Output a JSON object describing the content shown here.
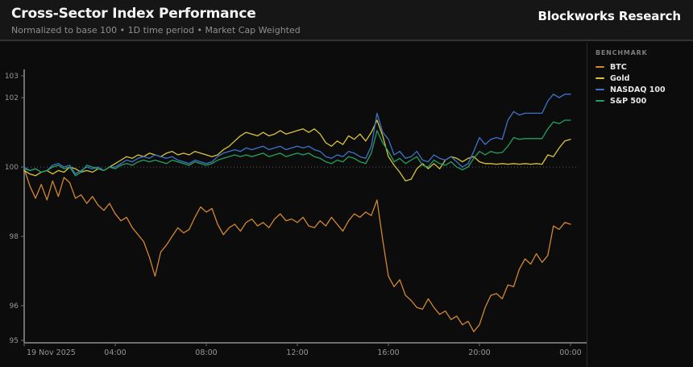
{
  "header": {
    "title": "Cross-Sector Index Performance",
    "subtitle": "Normalized to base 100 • 1D time period • Market Cap Weighted",
    "brand": "Blockworks Research"
  },
  "legend": {
    "heading": "BENCHMARK"
  },
  "colors": {
    "background": "#0c0c0d",
    "header_background": "#161617",
    "axis_line": "#6e6e73",
    "baseline_dotted": "#5c5c5c",
    "tick_text": "#969696"
  },
  "chart_data": {
    "type": "line",
    "title": "Cross-Sector Index Performance",
    "xlabel": "",
    "ylabel": "",
    "x_unit": "hours",
    "x_step_hours": 0.25,
    "xlim": [
      0,
      24
    ],
    "ylim": [
      94.93,
      102.77
    ],
    "baseline": 100,
    "grid": "dotted-baseline-only",
    "legend_position": "right",
    "y_ticks": [
      103,
      102,
      100,
      98,
      96,
      95
    ],
    "x_ticks": [
      {
        "t": 0,
        "label": "19 Nov 2025",
        "align": "start"
      },
      {
        "t": 4,
        "label": "04:00"
      },
      {
        "t": 8,
        "label": "08:00"
      },
      {
        "t": 12,
        "label": "12:00"
      },
      {
        "t": 16,
        "label": "16:00"
      },
      {
        "t": 20,
        "label": "20:00"
      },
      {
        "t": 24,
        "label": "00:00"
      }
    ],
    "series": [
      {
        "name": "BTC",
        "color": "#d2872f",
        "values": [
          99.95,
          99.45,
          99.1,
          99.5,
          99.05,
          99.6,
          99.15,
          99.7,
          99.55,
          99.1,
          99.2,
          98.95,
          99.15,
          98.9,
          98.75,
          98.95,
          98.65,
          98.45,
          98.55,
          98.25,
          98.05,
          97.85,
          97.4,
          96.85,
          97.55,
          97.75,
          98.0,
          98.25,
          98.1,
          98.2,
          98.55,
          98.85,
          98.7,
          98.8,
          98.35,
          98.05,
          98.25,
          98.35,
          98.15,
          98.4,
          98.5,
          98.3,
          98.4,
          98.25,
          98.5,
          98.65,
          98.45,
          98.5,
          98.4,
          98.55,
          98.3,
          98.25,
          98.45,
          98.3,
          98.55,
          98.35,
          98.15,
          98.45,
          98.65,
          98.55,
          98.7,
          98.6,
          99.05,
          97.9,
          96.85,
          96.55,
          96.75,
          96.3,
          96.15,
          95.95,
          95.9,
          96.2,
          95.95,
          95.75,
          95.85,
          95.6,
          95.7,
          95.45,
          95.55,
          95.25,
          95.45,
          95.95,
          96.3,
          96.35,
          96.2,
          96.6,
          96.55,
          97.05,
          97.35,
          97.2,
          97.5,
          97.25,
          97.45,
          98.3,
          98.2,
          98.4,
          98.35
        ]
      },
      {
        "name": "Gold",
        "color": "#d9c53a",
        "values": [
          99.9,
          99.8,
          99.75,
          99.85,
          99.9,
          99.8,
          99.9,
          99.85,
          100.0,
          99.95,
          99.85,
          99.9,
          99.85,
          99.95,
          99.9,
          100.0,
          100.1,
          100.2,
          100.3,
          100.25,
          100.35,
          100.3,
          100.4,
          100.35,
          100.3,
          100.4,
          100.45,
          100.35,
          100.4,
          100.35,
          100.45,
          100.4,
          100.35,
          100.3,
          100.35,
          100.5,
          100.6,
          100.75,
          100.9,
          101.0,
          100.95,
          100.9,
          101.0,
          100.9,
          100.95,
          101.05,
          100.95,
          101.0,
          101.05,
          101.1,
          101.0,
          101.1,
          100.95,
          100.7,
          100.6,
          100.75,
          100.65,
          100.9,
          100.8,
          100.95,
          100.75,
          101.0,
          101.35,
          100.9,
          100.3,
          100.05,
          99.85,
          99.6,
          99.65,
          99.95,
          100.1,
          99.95,
          100.1,
          99.95,
          100.2,
          100.3,
          100.25,
          100.15,
          100.25,
          100.3,
          100.15,
          100.1,
          100.1,
          100.08,
          100.1,
          100.08,
          100.1,
          100.08,
          100.1,
          100.08,
          100.1,
          100.08,
          100.35,
          100.3,
          100.55,
          100.75,
          100.8
        ]
      },
      {
        "name": "NASDAQ 100",
        "color": "#3d74c8",
        "values": [
          100.0,
          99.9,
          99.95,
          99.85,
          99.9,
          100.05,
          100.1,
          100.0,
          100.05,
          99.8,
          99.9,
          100.0,
          99.95,
          100.0,
          99.9,
          100.0,
          100.0,
          100.1,
          100.2,
          100.15,
          100.25,
          100.3,
          100.25,
          100.35,
          100.3,
          100.25,
          100.3,
          100.2,
          100.15,
          100.1,
          100.2,
          100.15,
          100.1,
          100.15,
          100.3,
          100.4,
          100.45,
          100.5,
          100.45,
          100.55,
          100.5,
          100.55,
          100.6,
          100.5,
          100.55,
          100.6,
          100.5,
          100.55,
          100.6,
          100.55,
          100.6,
          100.5,
          100.45,
          100.3,
          100.25,
          100.35,
          100.3,
          100.45,
          100.4,
          100.3,
          100.25,
          100.6,
          101.55,
          101.0,
          100.8,
          100.35,
          100.45,
          100.25,
          100.3,
          100.45,
          100.2,
          100.15,
          100.35,
          100.25,
          100.2,
          100.3,
          100.15,
          100.0,
          100.1,
          100.45,
          100.85,
          100.65,
          100.8,
          100.85,
          100.8,
          101.35,
          101.6,
          101.5,
          101.55,
          101.55,
          101.55,
          101.55,
          101.9,
          102.1,
          102.0,
          102.1,
          102.1
        ]
      },
      {
        "name": "S&P 500",
        "color": "#26a05e",
        "values": [
          99.95,
          99.9,
          99.95,
          99.85,
          99.9,
          100.0,
          100.05,
          99.95,
          100.0,
          99.75,
          99.85,
          100.05,
          100.0,
          99.95,
          99.9,
          100.0,
          99.95,
          100.05,
          100.1,
          100.05,
          100.15,
          100.2,
          100.15,
          100.2,
          100.15,
          100.1,
          100.2,
          100.15,
          100.1,
          100.05,
          100.15,
          100.1,
          100.05,
          100.1,
          100.2,
          100.25,
          100.3,
          100.35,
          100.3,
          100.35,
          100.3,
          100.35,
          100.4,
          100.3,
          100.35,
          100.4,
          100.3,
          100.35,
          100.4,
          100.35,
          100.4,
          100.3,
          100.25,
          100.15,
          100.1,
          100.2,
          100.15,
          100.3,
          100.25,
          100.15,
          100.1,
          100.4,
          101.05,
          100.7,
          100.45,
          100.15,
          100.25,
          100.1,
          100.2,
          100.3,
          100.05,
          100.0,
          100.2,
          100.1,
          100.05,
          100.15,
          100.0,
          99.92,
          100.0,
          100.25,
          100.45,
          100.35,
          100.45,
          100.4,
          100.42,
          100.6,
          100.85,
          100.8,
          100.82,
          100.82,
          100.82,
          100.82,
          101.1,
          101.3,
          101.25,
          101.35,
          101.35
        ]
      }
    ]
  }
}
